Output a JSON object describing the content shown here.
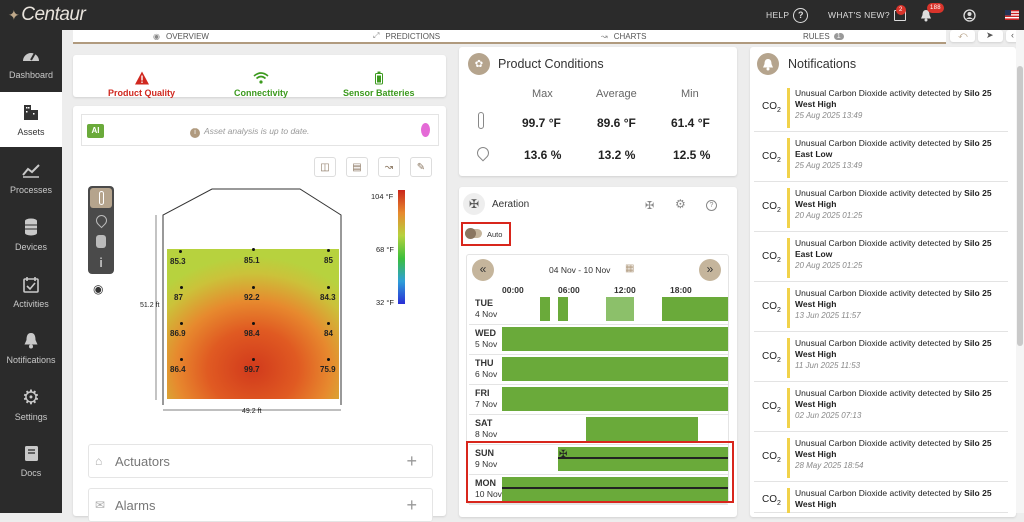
{
  "app": {
    "logo": "Centaur"
  },
  "topbar": {
    "help_label": "HELP",
    "whats_new_label": "WHAT'S NEW?",
    "whats_new_badge": "2",
    "alerts_badge": "188"
  },
  "sidebar": {
    "items": [
      {
        "label": "Dashboard",
        "icon": "gauge-icon"
      },
      {
        "label": "Assets",
        "icon": "building-icon",
        "active": true
      },
      {
        "label": "Processes",
        "icon": "trend-icon"
      },
      {
        "label": "Devices",
        "icon": "database-icon"
      },
      {
        "label": "Activities",
        "icon": "calendar-check-icon"
      },
      {
        "label": "Notifications",
        "icon": "bell-icon"
      },
      {
        "label": "Settings",
        "icon": "gear-icon"
      },
      {
        "label": "Docs",
        "icon": "book-icon"
      }
    ]
  },
  "tabs": {
    "overview": "OVERVIEW",
    "predictions": "PREDICTIONS",
    "charts": "CHARTS",
    "rules": "RULES",
    "rules_badge": "1"
  },
  "status": {
    "product_quality": "Product Quality",
    "connectivity": "Connectivity",
    "sensor_batteries": "Sensor Batteries"
  },
  "analysis": {
    "badge": "AI",
    "message": "Asset analysis is up to date."
  },
  "heatmap": {
    "height_label": "51.2 ft",
    "width_label": "49.2 ft",
    "scale_max": "104 °F",
    "scale_mid": "68 °F",
    "scale_min": "32 °F",
    "points": [
      "85.3",
      "85.1",
      "85",
      "87",
      "92.2",
      "84.3",
      "86.9",
      "98.4",
      "84",
      "86.4",
      "99.7",
      "75.9"
    ]
  },
  "accordions": {
    "actuators": "Actuators",
    "alarms": "Alarms"
  },
  "product_conditions": {
    "title": "Product Conditions",
    "cols": [
      "Max",
      "Average",
      "Min"
    ],
    "temperature": [
      "99.7 °F",
      "89.6 °F",
      "61.4 °F"
    ],
    "moisture": [
      "13.6 %",
      "13.2 %",
      "12.5 %"
    ]
  },
  "aeration": {
    "title": "Aeration",
    "auto_label": "Auto",
    "date_range": "04 Nov - 10 Nov",
    "hours": [
      "00:00",
      "06:00",
      "12:00",
      "18:00"
    ],
    "days": [
      {
        "day": "TUE",
        "date": "4 Nov"
      },
      {
        "day": "WED",
        "date": "5 Nov"
      },
      {
        "day": "THU",
        "date": "6 Nov"
      },
      {
        "day": "FRI",
        "date": "7 Nov"
      },
      {
        "day": "SAT",
        "date": "8 Nov"
      },
      {
        "day": "SUN",
        "date": "9 Nov"
      },
      {
        "day": "MON",
        "date": "10 Nov"
      }
    ]
  },
  "notifications": {
    "title": "Notifications",
    "co2": "CO",
    "co2_sub": "2",
    "items": [
      {
        "msg": "Unusual Carbon Dioxide activity detected by ",
        "silo": "Silo 25 West High",
        "time": "25 Aug 2025 13:49"
      },
      {
        "msg": "Unusual Carbon Dioxide activity detected by ",
        "silo": "Silo 25 East Low",
        "time": "25 Aug 2025 13:49"
      },
      {
        "msg": "Unusual Carbon Dioxide activity detected by ",
        "silo": "Silo 25 West High",
        "time": "20 Aug 2025 01:25"
      },
      {
        "msg": "Unusual Carbon Dioxide activity detected by ",
        "silo": "Silo 25 East Low",
        "time": "20 Aug 2025 01:25"
      },
      {
        "msg": "Unusual Carbon Dioxide activity detected by ",
        "silo": "Silo 25 West High",
        "time": "13 Jun 2025 11:57"
      },
      {
        "msg": "Unusual Carbon Dioxide activity detected by ",
        "silo": "Silo 25 West High",
        "time": "11 Jun 2025 11:53"
      },
      {
        "msg": "Unusual Carbon Dioxide activity detected by ",
        "silo": "Silo 25 West High",
        "time": "02 Jun 2025 07:13"
      },
      {
        "msg": "Unusual Carbon Dioxide activity detected by ",
        "silo": "Silo 25 West High",
        "time": "28 May 2025 18:54"
      },
      {
        "msg": "Unusual Carbon Dioxide activity detected by ",
        "silo": "Silo 25 West High",
        "time": ""
      }
    ]
  }
}
